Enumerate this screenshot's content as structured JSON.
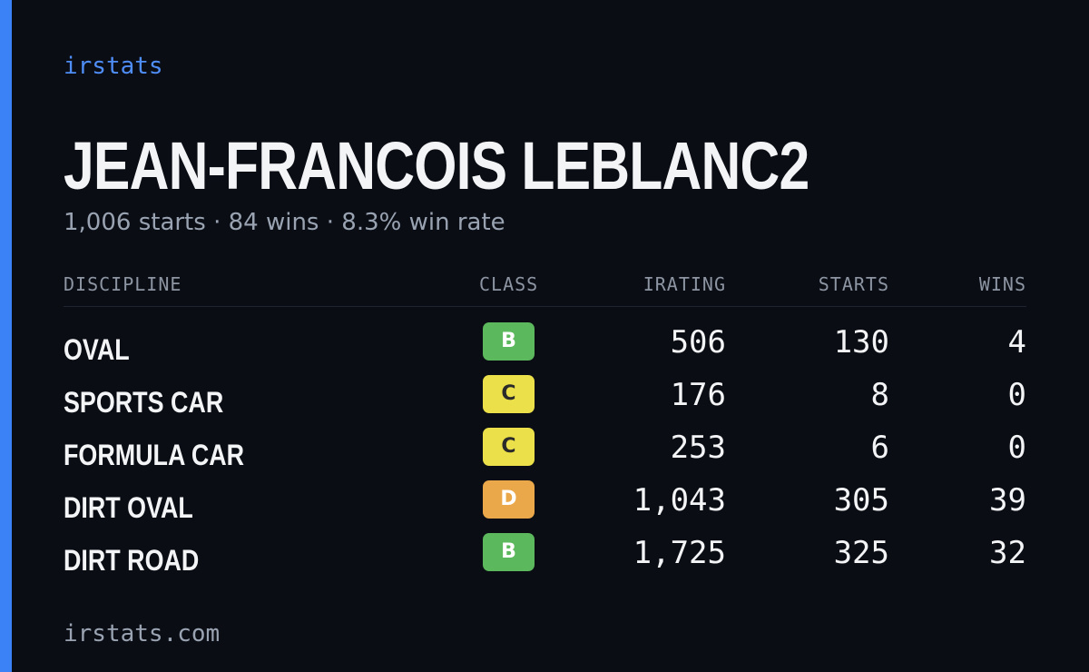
{
  "brand": "irstats",
  "driver": {
    "name": "JEAN-FRANCOIS LEBLANC2",
    "starts": "1,006 starts",
    "wins": "84 wins",
    "win_rate": "8.3% win rate",
    "separator": "·"
  },
  "table": {
    "headers": {
      "discipline": "DISCIPLINE",
      "class": "CLASS",
      "irating": "IRATING",
      "starts": "STARTS",
      "wins": "WINS"
    },
    "rows": [
      {
        "discipline": "OVAL",
        "class": "B",
        "class_color": "#5cb85c",
        "class_text_color": "#ffffff",
        "irating": "506",
        "starts": "130",
        "wins": "4"
      },
      {
        "discipline": "SPORTS CAR",
        "class": "C",
        "class_color": "#ebe04a",
        "class_text_color": "#2a2a2a",
        "irating": "176",
        "starts": "8",
        "wins": "0"
      },
      {
        "discipline": "FORMULA CAR",
        "class": "C",
        "class_color": "#ebe04a",
        "class_text_color": "#2a2a2a",
        "irating": "253",
        "starts": "6",
        "wins": "0"
      },
      {
        "discipline": "DIRT OVAL",
        "class": "D",
        "class_color": "#eba84a",
        "class_text_color": "#ffffff",
        "irating": "1,043",
        "starts": "305",
        "wins": "39"
      },
      {
        "discipline": "DIRT ROAD",
        "class": "B",
        "class_color": "#5cb85c",
        "class_text_color": "#ffffff",
        "irating": "1,725",
        "starts": "325",
        "wins": "32"
      }
    ]
  },
  "footer": "irstats.com",
  "colors": {
    "background": "#0a0d14",
    "accent": "#3b82f6",
    "brand_text": "#4f8df7"
  }
}
